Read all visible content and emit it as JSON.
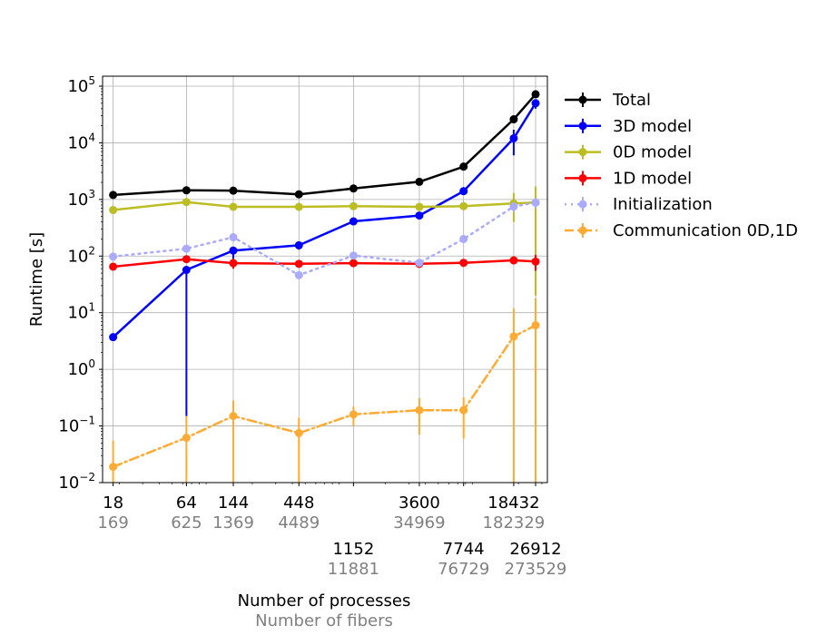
{
  "chart_data": {
    "type": "line",
    "title": "",
    "xlabel": "Number of processes",
    "xlabel2": "Number of fibers",
    "ylabel": "Runtime [s]",
    "xscale": "log",
    "yscale": "log",
    "xlim": [
      15,
      33000
    ],
    "ylim": [
      0.01,
      150000
    ],
    "grid": true,
    "legend_position": "outside-right-top",
    "x": [
      18,
      64,
      144,
      448,
      1152,
      3600,
      7744,
      18432,
      26912
    ],
    "x_tick_labels": [
      {
        "processes": "18",
        "fibers": "169",
        "row": 1
      },
      {
        "processes": "64",
        "fibers": "625",
        "row": 1
      },
      {
        "processes": "144",
        "fibers": "1369",
        "row": 1
      },
      {
        "processes": "448",
        "fibers": "4489",
        "row": 1
      },
      {
        "processes": "1152",
        "fibers": "11881",
        "row": 2
      },
      {
        "processes": "3600",
        "fibers": "34969",
        "row": 1
      },
      {
        "processes": "7744",
        "fibers": "76729",
        "row": 2
      },
      {
        "processes": "18432",
        "fibers": "182329",
        "row": 1
      },
      {
        "processes": "26912",
        "fibers": "273529",
        "row": 2
      }
    ],
    "y_ticks": [
      {
        "value": 100000,
        "base": "10",
        "exp": "5"
      },
      {
        "value": 10000,
        "base": "10",
        "exp": "4"
      },
      {
        "value": 1000,
        "base": "10",
        "exp": "3"
      },
      {
        "value": 100,
        "base": "10",
        "exp": "2"
      },
      {
        "value": 10,
        "base": "10",
        "exp": "1"
      },
      {
        "value": 1,
        "base": "10",
        "exp": "0"
      },
      {
        "value": 0.1,
        "base": "10",
        "exp": "−1"
      },
      {
        "value": 0.01,
        "base": "10",
        "exp": "−2"
      }
    ],
    "series": [
      {
        "name": "Total",
        "color": "#000000",
        "dash": "solid",
        "values": [
          1200,
          1450,
          1430,
          1230,
          1560,
          2050,
          3800,
          26000,
          72000
        ],
        "err_low": [
          1150,
          1400,
          1380,
          1180,
          1500,
          1980,
          3600,
          24000,
          65000
        ],
        "err_high": [
          1250,
          1500,
          1480,
          1280,
          1620,
          2120,
          4000,
          28000,
          78000
        ]
      },
      {
        "name": "3D model",
        "color": "#0000ff",
        "dash": "solid",
        "values": [
          3.7,
          57,
          125,
          155,
          410,
          520,
          1400,
          12000,
          50000
        ],
        "err_low": [
          3.4,
          0.15,
          60,
          130,
          380,
          480,
          1250,
          6000,
          40000
        ],
        "err_high": [
          4.0,
          62,
          135,
          165,
          440,
          560,
          1550,
          17000,
          58000
        ]
      },
      {
        "name": "0D model",
        "color": "#bcbd22",
        "dash": "solid",
        "values": [
          650,
          900,
          740,
          740,
          760,
          740,
          760,
          850,
          880
        ],
        "err_low": [
          620,
          860,
          700,
          700,
          720,
          700,
          720,
          400,
          20
        ],
        "err_high": [
          680,
          940,
          780,
          780,
          800,
          780,
          800,
          1300,
          1700
        ]
      },
      {
        "name": "1D model",
        "color": "#ff0000",
        "dash": "solid",
        "values": [
          65,
          88,
          75,
          73,
          75,
          73,
          76,
          84,
          80
        ],
        "err_low": [
          60,
          80,
          60,
          68,
          70,
          68,
          70,
          72,
          55
        ],
        "err_high": [
          70,
          96,
          90,
          78,
          80,
          78,
          82,
          96,
          105
        ]
      },
      {
        "name": "Initialization",
        "color": "#aaaaff",
        "dash": "dotted",
        "values": [
          98,
          135,
          215,
          46,
          102,
          76,
          200,
          750,
          880
        ],
        "err_low": [
          90,
          125,
          190,
          40,
          92,
          68,
          180,
          600,
          700
        ],
        "err_high": [
          106,
          145,
          240,
          52,
          112,
          84,
          220,
          900,
          1050
        ]
      },
      {
        "name": "Communication 0D,1D",
        "color": "#ffaa33",
        "dash": "dashdot",
        "values": [
          0.019,
          0.062,
          0.15,
          0.075,
          0.16,
          0.19,
          0.19,
          3.8,
          6.0
        ],
        "err_low": [
          0.005,
          0.005,
          0.005,
          0.005,
          0.1,
          0.07,
          0.06,
          0.005,
          0.005
        ],
        "err_high": [
          0.055,
          0.15,
          0.28,
          0.14,
          0.22,
          0.31,
          0.32,
          12,
          18
        ]
      }
    ]
  }
}
